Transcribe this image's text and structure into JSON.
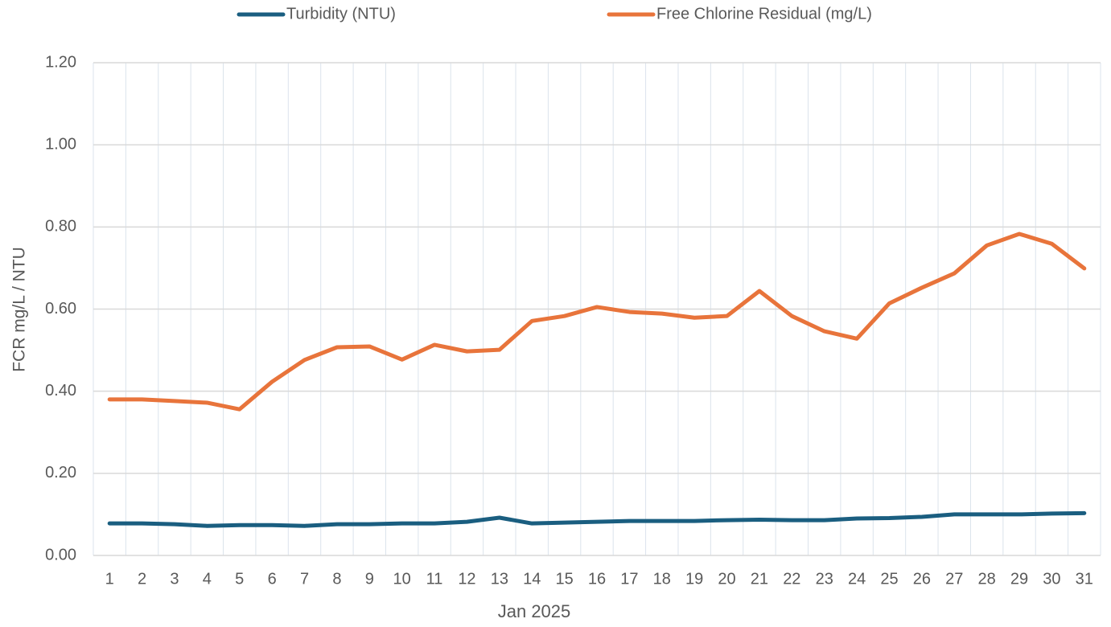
{
  "chart_data": {
    "type": "line",
    "x_label": "Jan 2025",
    "y_label": "FCR mg/L / NTU",
    "categories": [
      "1",
      "2",
      "3",
      "4",
      "5",
      "6",
      "7",
      "8",
      "9",
      "10",
      "11",
      "12",
      "13",
      "14",
      "15",
      "16",
      "17",
      "18",
      "19",
      "20",
      "21",
      "22",
      "23",
      "24",
      "25",
      "26",
      "27",
      "28",
      "29",
      "30",
      "31"
    ],
    "series": [
      {
        "name": "Turbidity (NTU)",
        "color": "#1a5e80",
        "values": [
          0.078,
          0.078,
          0.076,
          0.072,
          0.074,
          0.074,
          0.072,
          0.076,
          0.076,
          0.078,
          0.078,
          0.082,
          0.092,
          0.078,
          0.08,
          0.082,
          0.084,
          0.084,
          0.084,
          0.086,
          0.087,
          0.086,
          0.086,
          0.09,
          0.091,
          0.094,
          0.1,
          0.1,
          0.1,
          0.102,
          0.103
        ]
      },
      {
        "name": "Free Chlorine Residual (mg/L)",
        "color": "#e8743b",
        "values": [
          0.38,
          0.38,
          0.376,
          0.372,
          0.356,
          0.423,
          0.476,
          0.507,
          0.509,
          0.477,
          0.513,
          0.497,
          0.501,
          0.571,
          0.583,
          0.605,
          0.593,
          0.589,
          0.579,
          0.583,
          0.644,
          0.583,
          0.546,
          0.528,
          0.614,
          0.652,
          0.687,
          0.755,
          0.783,
          0.759,
          0.699
        ]
      }
    ],
    "ylim": [
      0,
      1.2
    ],
    "yticks": [
      {
        "value": 0,
        "label": "0.00"
      },
      {
        "value": 0.2,
        "label": "0.20"
      },
      {
        "value": 0.4,
        "label": "0.40"
      },
      {
        "value": 0.6,
        "label": "0.60"
      },
      {
        "value": 0.8,
        "label": "0.80"
      },
      {
        "value": 1,
        "label": "1.00"
      },
      {
        "value": 1.2,
        "label": "1.20"
      }
    ],
    "grid": true,
    "legend": "top"
  }
}
